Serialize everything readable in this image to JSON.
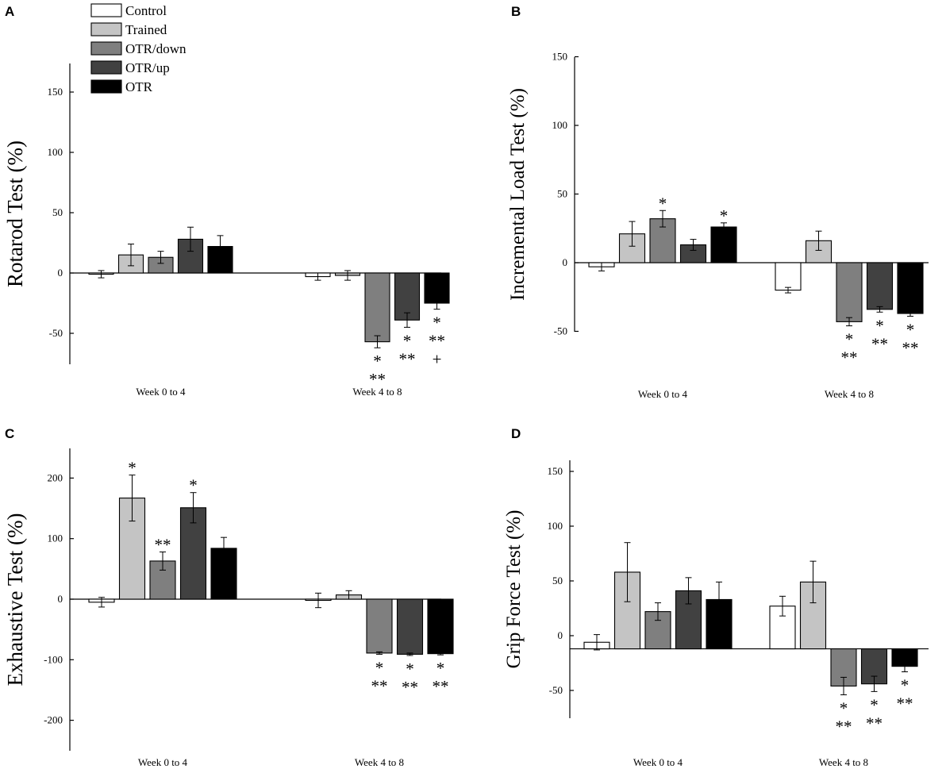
{
  "colors": {
    "Control": "#ffffff",
    "Trained": "#c4c4c4",
    "OTR/down": "#7f7f7f",
    "OTR/up": "#414141",
    "OTR": "#000000",
    "stroke": "#000000"
  },
  "legend": {
    "position": "top-left of panel A",
    "items": [
      "Control",
      "Trained",
      "OTR/down",
      "OTR/up",
      "OTR"
    ]
  },
  "chart_data": [
    {
      "panel": "A",
      "type": "bar",
      "ylabel": "Rotarod Test (%)",
      "ylim": [
        -75,
        170
      ],
      "yticks": [
        -50,
        0,
        50,
        100,
        150
      ],
      "categories": [
        "Week 0 to 4",
        "Week 4 to 8"
      ],
      "series": [
        {
          "name": "Control",
          "values": [
            -1,
            -3
          ],
          "errors": [
            3,
            3
          ]
        },
        {
          "name": "Trained",
          "values": [
            15,
            -2
          ],
          "errors": [
            9,
            4
          ]
        },
        {
          "name": "OTR/down",
          "values": [
            13,
            -57
          ],
          "errors": [
            5,
            5
          ]
        },
        {
          "name": "OTR/up",
          "values": [
            28,
            -39
          ],
          "errors": [
            10,
            6
          ]
        },
        {
          "name": "OTR",
          "values": [
            22,
            -25
          ],
          "errors": [
            9,
            5
          ]
        }
      ],
      "annotations": [
        {
          "category": 1,
          "series": 2,
          "text": [
            "*",
            "**"
          ]
        },
        {
          "category": 1,
          "series": 3,
          "text": [
            "*",
            "**"
          ]
        },
        {
          "category": 1,
          "series": 4,
          "text": [
            "*",
            "**",
            "+"
          ]
        }
      ]
    },
    {
      "panel": "B",
      "type": "bar",
      "ylabel": "Incremental Load Test (%)",
      "ylim": [
        -60,
        150
      ],
      "yticks": [
        -50,
        0,
        50,
        100,
        150
      ],
      "categories": [
        "Week 0 to 4",
        "Week 4 to 8"
      ],
      "series": [
        {
          "name": "Control",
          "values": [
            -3,
            -20
          ],
          "errors": [
            3,
            2
          ]
        },
        {
          "name": "Trained",
          "values": [
            21,
            16
          ],
          "errors": [
            9,
            7
          ]
        },
        {
          "name": "OTR/down",
          "values": [
            32,
            -43
          ],
          "errors": [
            6,
            3
          ]
        },
        {
          "name": "OTR/up",
          "values": [
            13,
            -34
          ],
          "errors": [
            4,
            2
          ]
        },
        {
          "name": "OTR",
          "values": [
            26,
            -37
          ],
          "errors": [
            3,
            2
          ]
        }
      ],
      "annotations": [
        {
          "category": 0,
          "series": 2,
          "text": [
            "*"
          ]
        },
        {
          "category": 0,
          "series": 4,
          "text": [
            "*"
          ]
        },
        {
          "category": 1,
          "series": 2,
          "text": [
            "*",
            "**"
          ]
        },
        {
          "category": 1,
          "series": 3,
          "text": [
            "*",
            "**"
          ]
        },
        {
          "category": 1,
          "series": 4,
          "text": [
            "*",
            "**"
          ]
        }
      ]
    },
    {
      "panel": "C",
      "type": "bar",
      "ylabel": "Exhaustive Test (%)",
      "ylim": [
        -250,
        250
      ],
      "yticks": [
        -200,
        -100,
        0,
        100,
        200
      ],
      "categories": [
        "Week 0 to 4",
        "Week 4 to 8"
      ],
      "series": [
        {
          "name": "Control",
          "values": [
            -5,
            -2
          ],
          "errors": [
            8,
            12
          ]
        },
        {
          "name": "Trained",
          "values": [
            167,
            7
          ],
          "errors": [
            38,
            7
          ]
        },
        {
          "name": "OTR/down",
          "values": [
            63,
            -89
          ],
          "errors": [
            15,
            2
          ]
        },
        {
          "name": "OTR/up",
          "values": [
            151,
            -91
          ],
          "errors": [
            25,
            2
          ]
        },
        {
          "name": "OTR",
          "values": [
            84,
            -90
          ],
          "errors": [
            18,
            2
          ]
        }
      ],
      "annotations": [
        {
          "category": 0,
          "series": 1,
          "text": [
            "*"
          ]
        },
        {
          "category": 0,
          "series": 2,
          "text": [
            "**"
          ]
        },
        {
          "category": 0,
          "series": 3,
          "text": [
            "*"
          ]
        },
        {
          "category": 1,
          "series": 2,
          "text": [
            "*",
            "**"
          ]
        },
        {
          "category": 1,
          "series": 3,
          "text": [
            "*",
            "**"
          ]
        },
        {
          "category": 1,
          "series": 4,
          "text": [
            "*",
            "**"
          ]
        }
      ]
    },
    {
      "panel": "D",
      "type": "bar",
      "ylabel": "Grip Force Test (%)",
      "ylim": [
        -75,
        170
      ],
      "yticks": [
        -50,
        0,
        50,
        100,
        150
      ],
      "baseline": -12,
      "categories": [
        "Week 0 to 4",
        "Week 4 to 8"
      ],
      "series": [
        {
          "name": "Control",
          "values": [
            -6,
            27
          ],
          "errors": [
            7,
            9
          ]
        },
        {
          "name": "Trained",
          "values": [
            58,
            49
          ],
          "errors": [
            27,
            19
          ]
        },
        {
          "name": "OTR/down",
          "values": [
            22,
            -46
          ],
          "errors": [
            8,
            8
          ]
        },
        {
          "name": "OTR/up",
          "values": [
            41,
            -44
          ],
          "errors": [
            12,
            7
          ]
        },
        {
          "name": "OTR",
          "values": [
            33,
            -28
          ],
          "errors": [
            16,
            5
          ]
        }
      ],
      "annotations": [
        {
          "category": 1,
          "series": 2,
          "text": [
            "*",
            "**"
          ]
        },
        {
          "category": 1,
          "series": 3,
          "text": [
            "*",
            "**"
          ]
        },
        {
          "category": 1,
          "series": 4,
          "text": [
            "*",
            "**"
          ]
        }
      ]
    }
  ]
}
